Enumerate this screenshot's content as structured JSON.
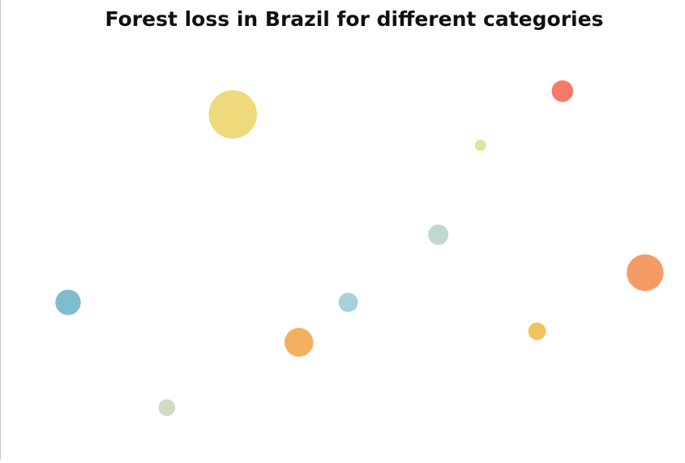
{
  "chart_data": {
    "type": "scatter",
    "title": "Forest loss in Brazil for different categories",
    "xlabel": "",
    "ylabel": "",
    "grid": false,
    "legend": "none",
    "xlim": [
      0,
      100
    ],
    "ylim": [
      0,
      100
    ],
    "size_range": [
      1,
      40
    ],
    "points": [
      {
        "x": 8.5,
        "y": 36.2,
        "size": 7.6,
        "color": "#7fbcd0"
      },
      {
        "x": 23.3,
        "y": 10.4,
        "size": 3.3,
        "color": "#cfdcc3"
      },
      {
        "x": 33.2,
        "y": 82.3,
        "size": 27.5,
        "color": "#eed97b"
      },
      {
        "x": 43.1,
        "y": 26.4,
        "size": 9.8,
        "color": "#f3b061"
      },
      {
        "x": 50.5,
        "y": 36.2,
        "size": 4.4,
        "color": "#a8d0da"
      },
      {
        "x": 64.0,
        "y": 52.8,
        "size": 4.8,
        "color": "#bfd8d2"
      },
      {
        "x": 70.3,
        "y": 74.7,
        "size": 1.5,
        "color": "#e3e2a3"
      },
      {
        "x": 78.8,
        "y": 29.1,
        "size": 3.7,
        "color": "#eec45c"
      },
      {
        "x": 82.6,
        "y": 88.0,
        "size": 5.5,
        "color": "#f67a67"
      },
      {
        "x": 95.0,
        "y": 43.5,
        "size": 15.8,
        "color": "#f59b66"
      }
    ]
  }
}
